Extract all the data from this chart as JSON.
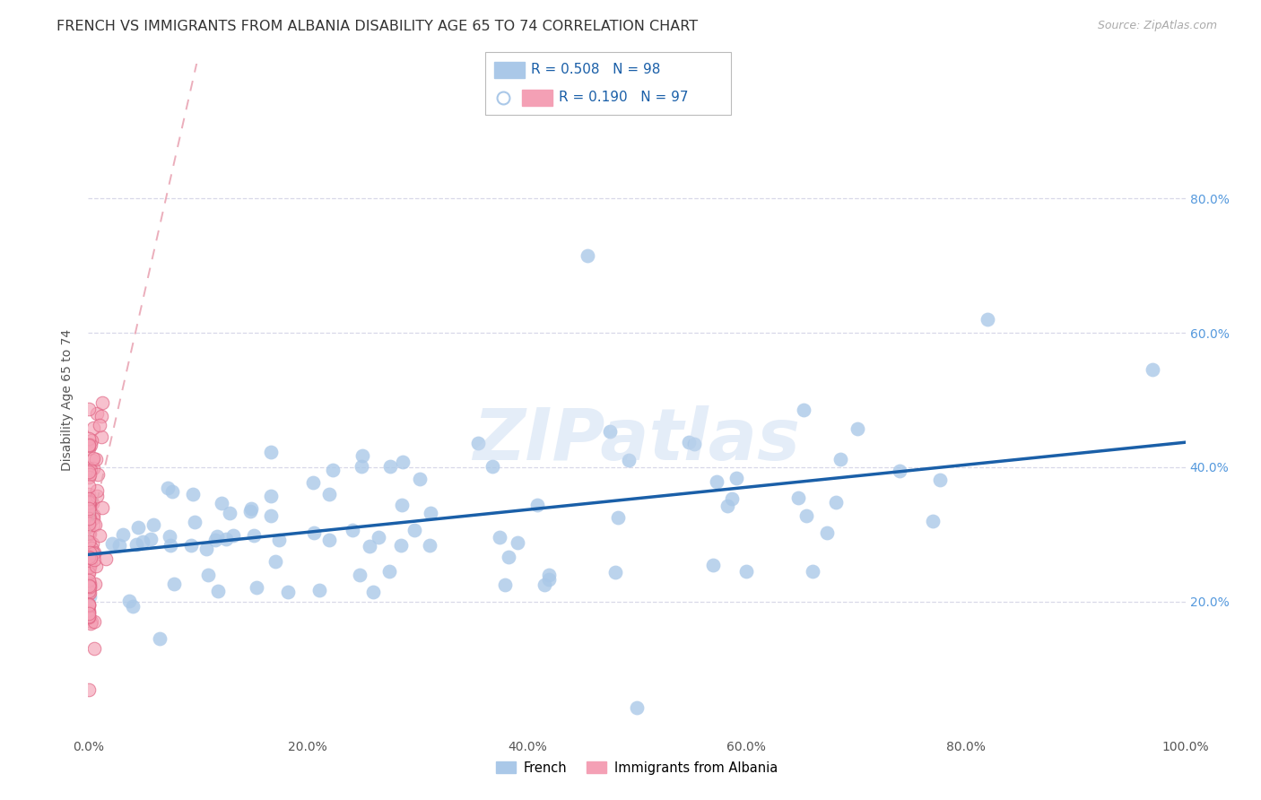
{
  "title": "FRENCH VS IMMIGRANTS FROM ALBANIA DISABILITY AGE 65 TO 74 CORRELATION CHART",
  "source": "Source: ZipAtlas.com",
  "ylabel": "Disability Age 65 to 74",
  "xlim": [
    0,
    1.0
  ],
  "ylim": [
    0,
    1.0
  ],
  "xticks": [
    0.0,
    0.2,
    0.4,
    0.6,
    0.8,
    1.0
  ],
  "yticks": [
    0.2,
    0.4,
    0.6,
    0.8
  ],
  "xticklabels": [
    "0.0%",
    "20.0%",
    "40.0%",
    "60.0%",
    "80.0%",
    "100.0%"
  ],
  "right_yticklabels": [
    "20.0%",
    "40.0%",
    "60.0%",
    "80.0%"
  ],
  "french_R": 0.508,
  "french_N": 98,
  "albania_R": 0.19,
  "albania_N": 97,
  "french_color": "#aac8e8",
  "albania_color": "#f4a0b5",
  "albania_edge_color": "#e06080",
  "french_line_color": "#1a5fa8",
  "albania_line_color": "#e8a0b0",
  "watermark": "ZIPatlas",
  "background_color": "#ffffff",
  "grid_color": "#d8d8e8",
  "legend_french_label": "French",
  "legend_albania_label": "Immigrants from Albania",
  "title_fontsize": 11.5,
  "axis_label_fontsize": 10,
  "tick_fontsize": 10,
  "right_tick_color": "#5599dd",
  "source_color": "#aaaaaa"
}
